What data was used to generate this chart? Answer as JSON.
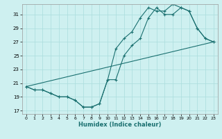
{
  "xlabel": "Humidex (Indice chaleur)",
  "xlim": [
    -0.5,
    23.5
  ],
  "ylim": [
    16.5,
    32.5
  ],
  "yticks": [
    17,
    19,
    21,
    23,
    25,
    27,
    29,
    31
  ],
  "xticks": [
    0,
    1,
    2,
    3,
    4,
    5,
    6,
    7,
    8,
    9,
    10,
    11,
    12,
    13,
    14,
    15,
    16,
    17,
    18,
    19,
    20,
    21,
    22,
    23
  ],
  "bg_color": "#cef0f0",
  "grid_color": "#aadddd",
  "line_color": "#1a7070",
  "line1_x": [
    0,
    1,
    2,
    3,
    4,
    5,
    6,
    7,
    8,
    9,
    10,
    11,
    12,
    13,
    14,
    15,
    16,
    17,
    18,
    19,
    20,
    21,
    22,
    23
  ],
  "line1_y": [
    20.5,
    20.0,
    20.0,
    19.5,
    19.0,
    19.0,
    18.5,
    17.5,
    17.5,
    18.0,
    21.5,
    21.5,
    25.0,
    26.5,
    27.5,
    30.5,
    32.0,
    31.0,
    31.0,
    32.0,
    31.5,
    29.0,
    27.5,
    27.0
  ],
  "line2_x": [
    0,
    1,
    2,
    3,
    4,
    5,
    6,
    7,
    8,
    9,
    10,
    11,
    12,
    13,
    14,
    15,
    16,
    17,
    18,
    19,
    20,
    21,
    22,
    23
  ],
  "line2_y": [
    20.5,
    20.0,
    20.0,
    19.5,
    19.0,
    19.0,
    18.5,
    17.5,
    17.5,
    18.0,
    21.5,
    26.0,
    27.5,
    28.5,
    30.5,
    32.0,
    31.5,
    31.5,
    32.5,
    32.0,
    31.5,
    29.0,
    27.5,
    27.0
  ],
  "line3_x": [
    0,
    23
  ],
  "line3_y": [
    20.5,
    27.0
  ]
}
